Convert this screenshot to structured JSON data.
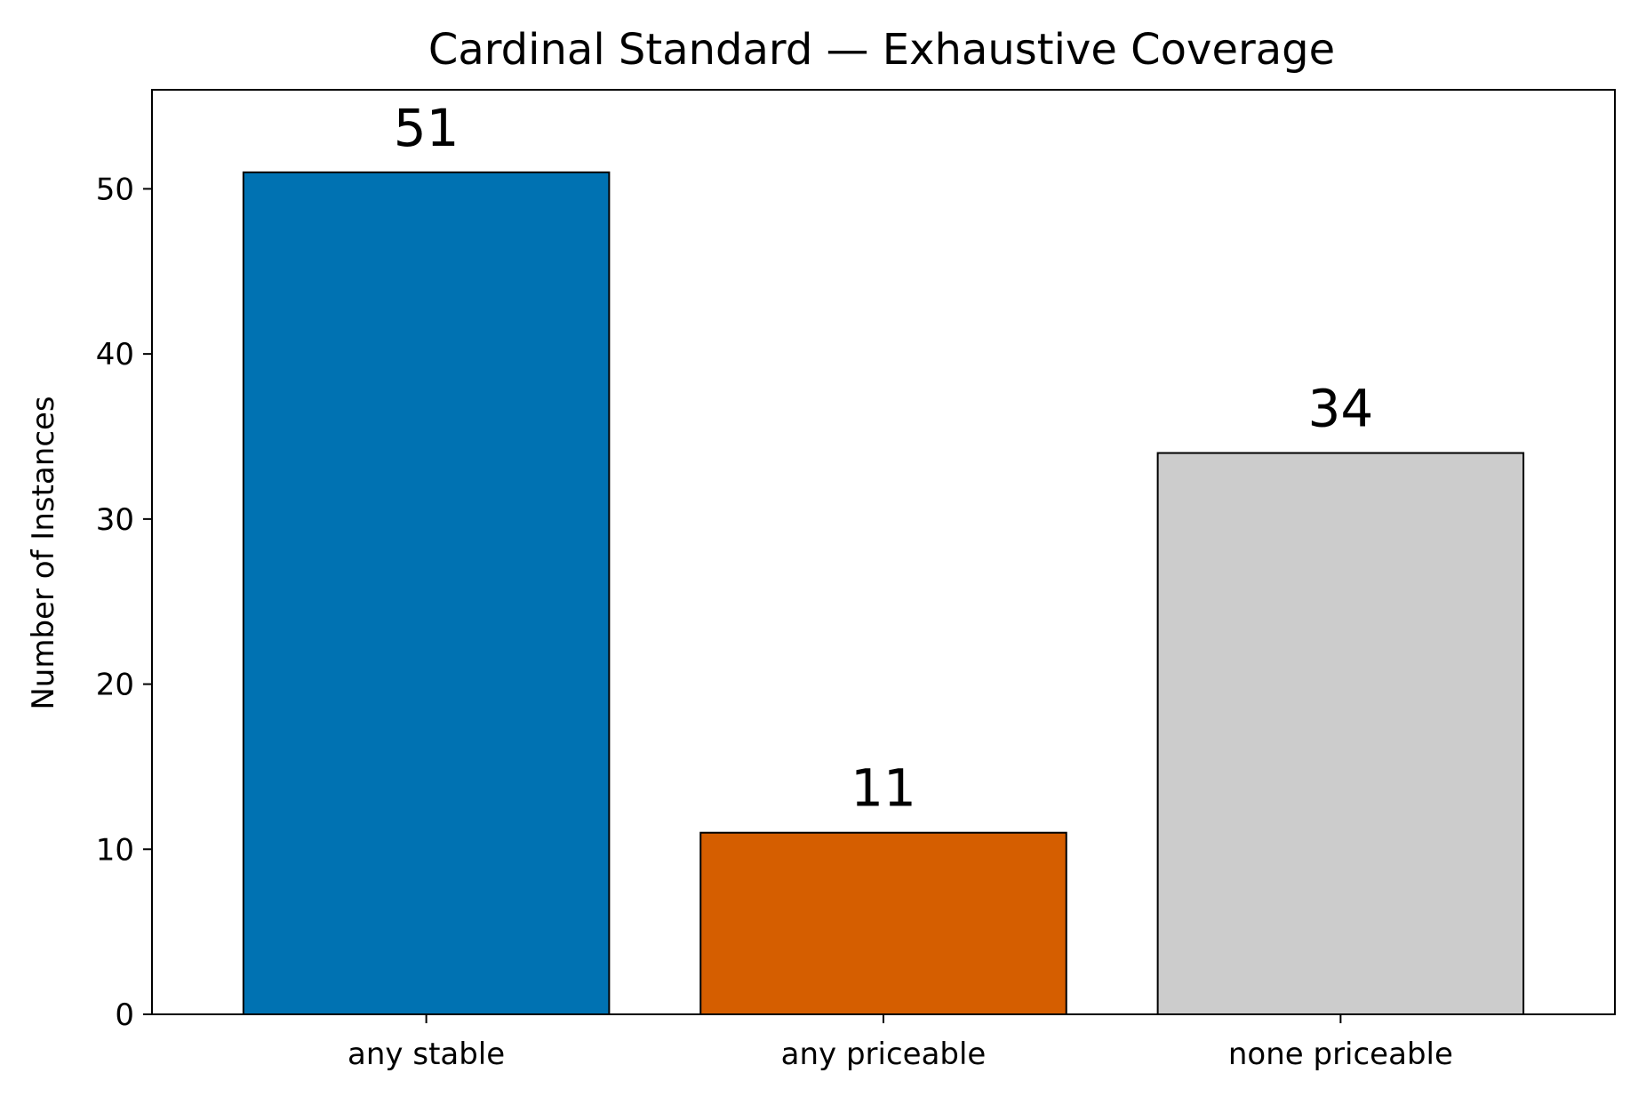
{
  "chart_data": {
    "type": "bar",
    "title": "Cardinal Standard — Exhaustive Coverage",
    "xlabel": "",
    "ylabel": "Number of Instances",
    "categories": [
      "any stable",
      "any priceable",
      "none priceable"
    ],
    "values": [
      51,
      11,
      34
    ],
    "data_labels": [
      "51",
      "11",
      "34"
    ],
    "colors": [
      "#0072b2",
      "#d55e00",
      "#cccccc"
    ],
    "edge_color": "#000000",
    "ylim": [
      0,
      56
    ],
    "yticks": [
      0,
      10,
      20,
      30,
      40,
      50
    ],
    "ytick_labels": [
      "0",
      "10",
      "20",
      "30",
      "40",
      "50"
    ],
    "grid": false,
    "legend": "none"
  }
}
